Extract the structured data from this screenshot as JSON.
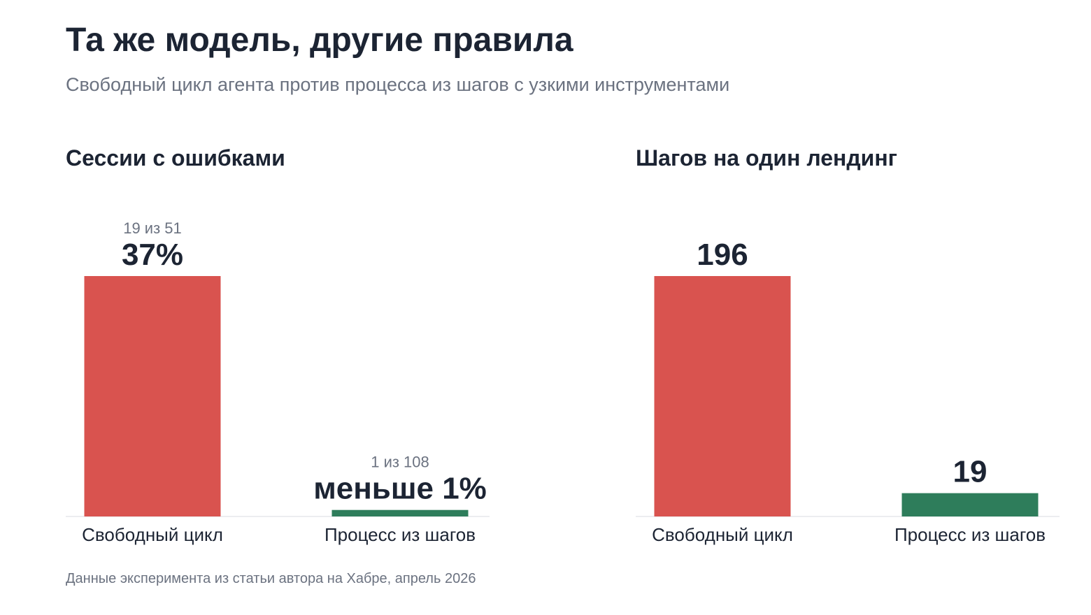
{
  "title": "Та же модель, другие правила",
  "subtitle": "Свободный цикл агента против процесса из шагов с узкими инструментами",
  "footnote": "Данные эксперимента из статьи автора на Хабре, апрель 2026",
  "colors": {
    "free_loop": "#d9534f",
    "step_process": "#2e7d5b",
    "baseline": "#e5e7eb"
  },
  "chart_data": [
    {
      "type": "bar",
      "title": "Сессии с ошибками",
      "categories": [
        "Свободный цикл",
        "Процесс из шагов"
      ],
      "values": [
        37,
        1
      ],
      "value_labels": [
        "37%",
        "меньше 1%"
      ],
      "sub_labels": [
        "19 из 51",
        "1 из 108"
      ],
      "ylim": [
        0,
        37
      ]
    },
    {
      "type": "bar",
      "title": "Шагов на один лендинг",
      "categories": [
        "Свободный цикл",
        "Процесс из шагов"
      ],
      "values": [
        196,
        19
      ],
      "value_labels": [
        "196",
        "19"
      ],
      "sub_labels": [
        "",
        ""
      ],
      "ylim": [
        0,
        196
      ]
    }
  ]
}
